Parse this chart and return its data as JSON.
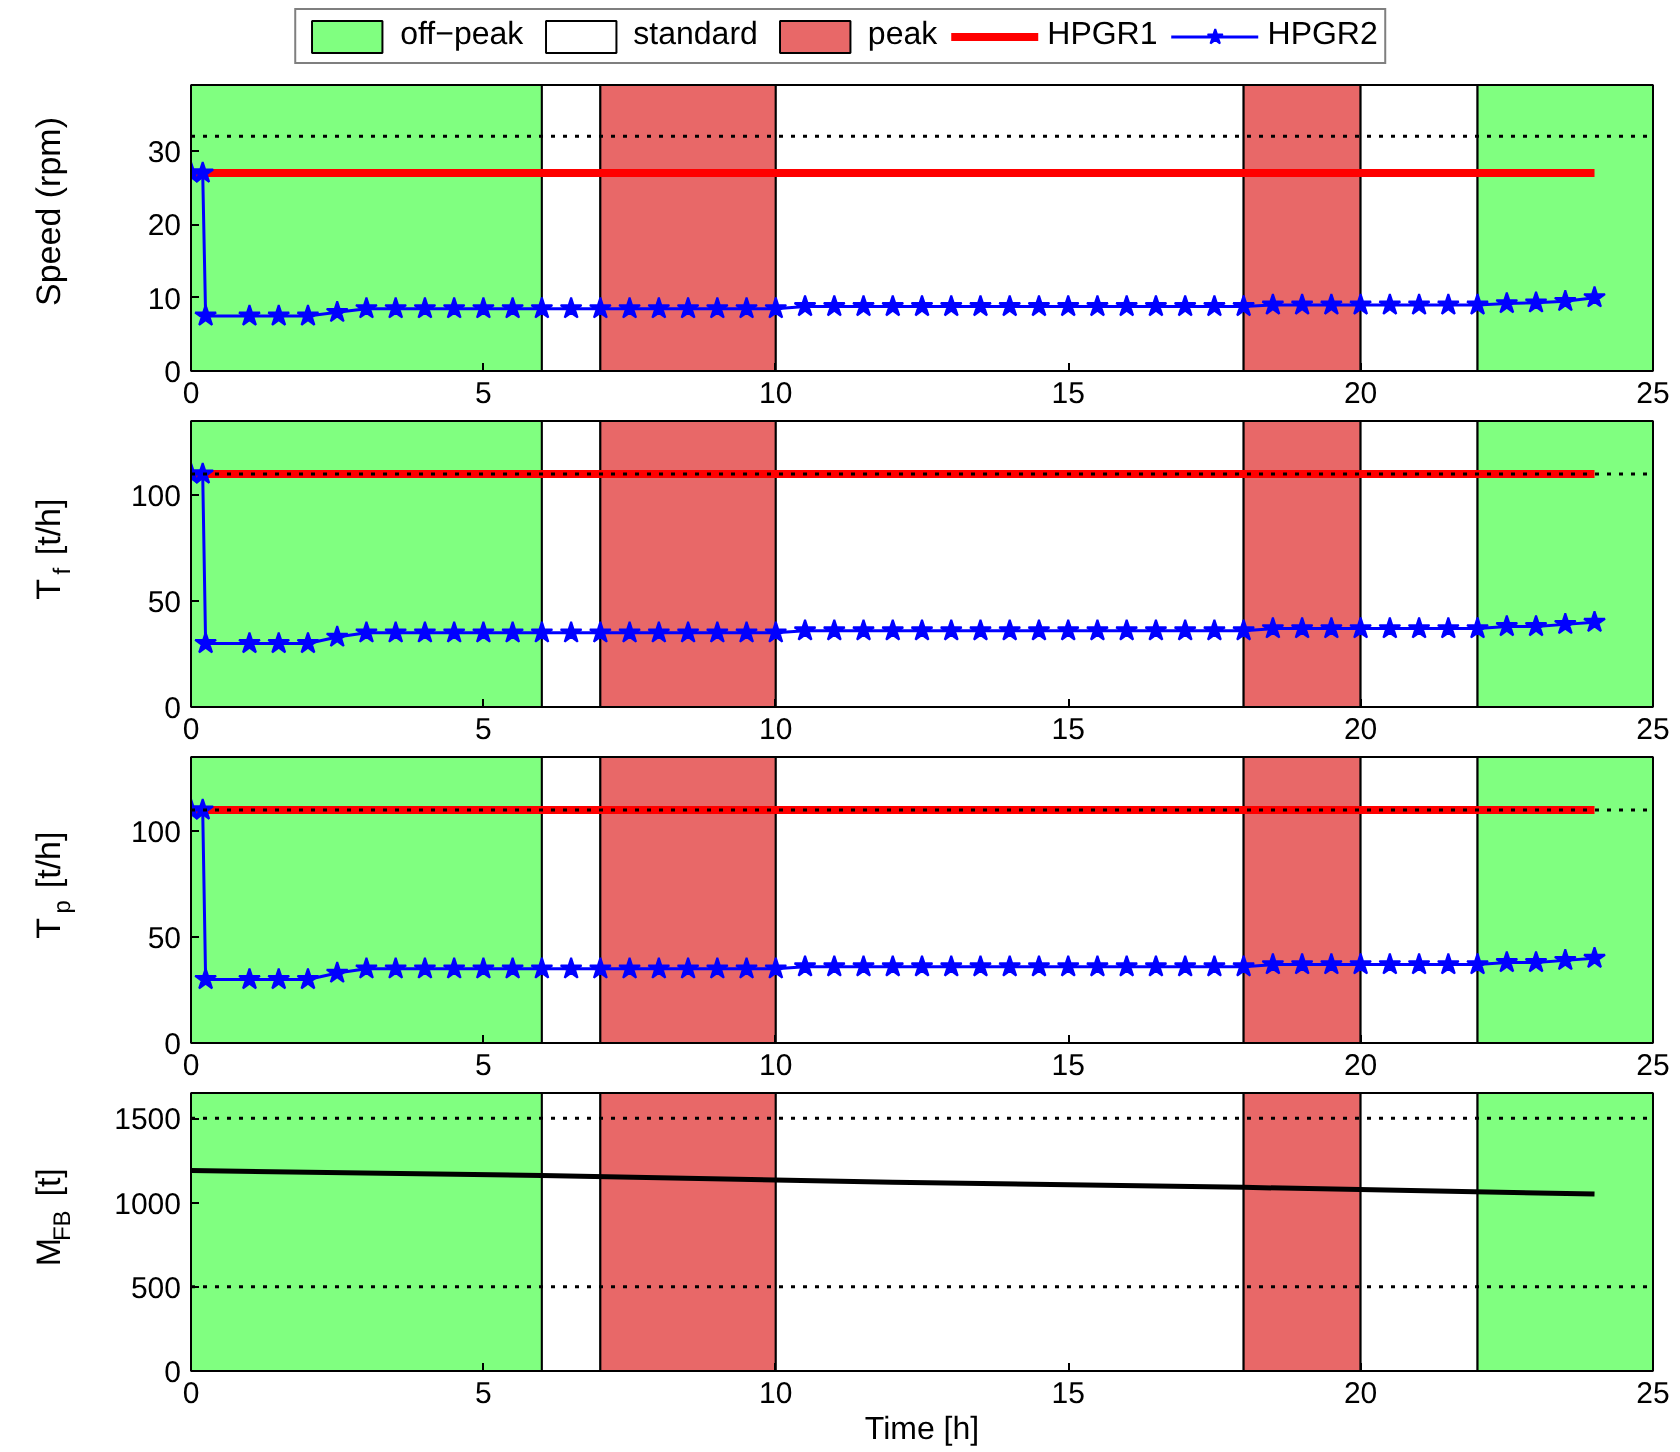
{
  "chart_data": [
    {
      "type": "line",
      "ylabel": "Speed (rpm)",
      "xlim": [
        0,
        25
      ],
      "xticks": [
        0,
        5,
        10,
        15,
        20,
        25
      ],
      "ylim": [
        0,
        39
      ],
      "yticks": [
        0,
        10,
        20,
        30
      ],
      "legend": "top",
      "bands": [
        {
          "axis": "x",
          "from": 0,
          "to": 6,
          "label": "off−peak",
          "color": "#80ff80"
        },
        {
          "axis": "x",
          "from": 6,
          "to": 7,
          "label": "standard",
          "color": "#ffffff"
        },
        {
          "axis": "x",
          "from": 7,
          "to": 10,
          "label": "peak",
          "color": "#e86868"
        },
        {
          "axis": "x",
          "from": 10,
          "to": 18,
          "color": "#ffffff"
        },
        {
          "axis": "x",
          "from": 18,
          "to": 20,
          "color": "#e86868"
        },
        {
          "axis": "x",
          "from": 20,
          "to": 22,
          "color": "#ffffff"
        },
        {
          "axis": "x",
          "from": 22,
          "to": 25,
          "color": "#80ff80"
        }
      ],
      "ref_lines": [
        {
          "axis": "y",
          "value": 32,
          "line_style": "dotted"
        }
      ],
      "series": [
        {
          "name": "HPGR1",
          "color": "#ff0000",
          "marker": "none",
          "x": [
            0,
            24
          ],
          "values": [
            27,
            27
          ]
        },
        {
          "name": "HPGR2",
          "color": "#0000ff",
          "marker": "star",
          "x": [
            0,
            0.2,
            0.25,
            1,
            1.5,
            2,
            2.5,
            3,
            3.5,
            4,
            4.5,
            5,
            5.5,
            6,
            6.5,
            7,
            7.5,
            8,
            8.5,
            9,
            9.5,
            10,
            10.5,
            11,
            11.5,
            12,
            12.5,
            13,
            13.5,
            14,
            14.5,
            15,
            15.5,
            16,
            16.5,
            17,
            17.5,
            18,
            18.5,
            19,
            19.5,
            20,
            20.5,
            21,
            21.5,
            22,
            22.5,
            23,
            23.5,
            24
          ],
          "values": [
            27,
            27,
            7.5,
            7.5,
            7.5,
            7.5,
            8.0,
            8.5,
            8.5,
            8.5,
            8.5,
            8.5,
            8.5,
            8.5,
            8.5,
            8.5,
            8.5,
            8.5,
            8.5,
            8.5,
            8.5,
            8.5,
            8.8,
            8.8,
            8.8,
            8.8,
            8.8,
            8.8,
            8.8,
            8.8,
            8.8,
            8.8,
            8.8,
            8.8,
            8.8,
            8.8,
            8.8,
            8.8,
            9.0,
            9.0,
            9.0,
            9.0,
            9.0,
            9.0,
            9.0,
            9.0,
            9.2,
            9.3,
            9.5,
            10
          ]
        }
      ]
    },
    {
      "type": "line",
      "ylabel": "T$_{f}$ [t/h]",
      "xlim": [
        0,
        25
      ],
      "xticks": [
        0,
        5,
        10,
        15,
        20,
        25
      ],
      "ylim": [
        0,
        135
      ],
      "yticks": [
        0,
        50,
        100
      ],
      "bands": [
        {
          "axis": "x",
          "from": 0,
          "to": 6,
          "color": "#80ff80"
        },
        {
          "axis": "x",
          "from": 6,
          "to": 7,
          "color": "#ffffff"
        },
        {
          "axis": "x",
          "from": 7,
          "to": 10,
          "color": "#e86868"
        },
        {
          "axis": "x",
          "from": 10,
          "to": 18,
          "color": "#ffffff"
        },
        {
          "axis": "x",
          "from": 18,
          "to": 20,
          "color": "#e86868"
        },
        {
          "axis": "x",
          "from": 20,
          "to": 22,
          "color": "#ffffff"
        },
        {
          "axis": "x",
          "from": 22,
          "to": 25,
          "color": "#80ff80"
        }
      ],
      "ref_lines": [
        {
          "axis": "y",
          "value": 110,
          "line_style": "dotted"
        }
      ],
      "series": [
        {
          "color": "#ff0000",
          "marker": "none",
          "x": [
            0,
            24
          ],
          "values": [
            110,
            110
          ]
        },
        {
          "color": "#0000ff",
          "marker": "star",
          "x": [
            0,
            0.2,
            0.25,
            1,
            1.5,
            2,
            2.5,
            3,
            3.5,
            4,
            4.5,
            5,
            5.5,
            6,
            6.5,
            7,
            7.5,
            8,
            8.5,
            9,
            9.5,
            10,
            10.5,
            11,
            11.5,
            12,
            12.5,
            13,
            13.5,
            14,
            14.5,
            15,
            15.5,
            16,
            16.5,
            17,
            17.5,
            18,
            18.5,
            19,
            19.5,
            20,
            20.5,
            21,
            21.5,
            22,
            22.5,
            23,
            23.5,
            24
          ],
          "values": [
            110,
            110,
            30,
            30,
            30,
            30,
            33,
            35,
            35,
            35,
            35,
            35,
            35,
            35,
            35,
            35,
            35,
            35,
            35,
            35,
            35,
            35,
            36,
            36,
            36,
            36,
            36,
            36,
            36,
            36,
            36,
            36,
            36,
            36,
            36,
            36,
            36,
            36,
            37,
            37,
            37,
            37,
            37,
            37,
            37,
            37,
            38,
            38,
            39,
            40
          ]
        }
      ]
    },
    {
      "type": "line",
      "ylabel": "T$_{p}$ [t/h]",
      "xlim": [
        0,
        25
      ],
      "xticks": [
        0,
        5,
        10,
        15,
        20,
        25
      ],
      "ylim": [
        0,
        135
      ],
      "yticks": [
        0,
        50,
        100
      ],
      "bands": [
        {
          "axis": "x",
          "from": 0,
          "to": 6,
          "color": "#80ff80"
        },
        {
          "axis": "x",
          "from": 6,
          "to": 7,
          "color": "#ffffff"
        },
        {
          "axis": "x",
          "from": 7,
          "to": 10,
          "color": "#e86868"
        },
        {
          "axis": "x",
          "from": 10,
          "to": 18,
          "color": "#ffffff"
        },
        {
          "axis": "x",
          "from": 18,
          "to": 20,
          "color": "#e86868"
        },
        {
          "axis": "x",
          "from": 20,
          "to": 22,
          "color": "#ffffff"
        },
        {
          "axis": "x",
          "from": 22,
          "to": 25,
          "color": "#80ff80"
        }
      ],
      "ref_lines": [
        {
          "axis": "y",
          "value": 110,
          "line_style": "dotted"
        }
      ],
      "series": [
        {
          "color": "#ff0000",
          "marker": "none",
          "x": [
            0,
            24
          ],
          "values": [
            110,
            110
          ]
        },
        {
          "color": "#0000ff",
          "marker": "star",
          "x": [
            0,
            0.2,
            0.25,
            1,
            1.5,
            2,
            2.5,
            3,
            3.5,
            4,
            4.5,
            5,
            5.5,
            6,
            6.5,
            7,
            7.5,
            8,
            8.5,
            9,
            9.5,
            10,
            10.5,
            11,
            11.5,
            12,
            12.5,
            13,
            13.5,
            14,
            14.5,
            15,
            15.5,
            16,
            16.5,
            17,
            17.5,
            18,
            18.5,
            19,
            19.5,
            20,
            20.5,
            21,
            21.5,
            22,
            22.5,
            23,
            23.5,
            24
          ],
          "values": [
            110,
            110,
            30,
            30,
            30,
            30,
            33,
            35,
            35,
            35,
            35,
            35,
            35,
            35,
            35,
            35,
            35,
            35,
            35,
            35,
            35,
            35,
            36,
            36,
            36,
            36,
            36,
            36,
            36,
            36,
            36,
            36,
            36,
            36,
            36,
            36,
            36,
            36,
            37,
            37,
            37,
            37,
            37,
            37,
            37,
            37,
            38,
            38,
            39,
            40
          ]
        }
      ]
    },
    {
      "type": "line",
      "ylabel": "M$_{FB}$ [t]",
      "xlabel": "Time [h]",
      "xlim": [
        0,
        25
      ],
      "xticks": [
        0,
        5,
        10,
        15,
        20,
        25
      ],
      "ylim": [
        0,
        1650
      ],
      "yticks": [
        0,
        500,
        1000,
        1500
      ],
      "bands": [
        {
          "axis": "x",
          "from": 0,
          "to": 6,
          "color": "#80ff80"
        },
        {
          "axis": "x",
          "from": 6,
          "to": 7,
          "color": "#ffffff"
        },
        {
          "axis": "x",
          "from": 7,
          "to": 10,
          "color": "#e86868"
        },
        {
          "axis": "x",
          "from": 10,
          "to": 18,
          "color": "#ffffff"
        },
        {
          "axis": "x",
          "from": 18,
          "to": 20,
          "color": "#e86868"
        },
        {
          "axis": "x",
          "from": 20,
          "to": 22,
          "color": "#ffffff"
        },
        {
          "axis": "x",
          "from": 22,
          "to": 25,
          "color": "#80ff80"
        }
      ],
      "ref_lines": [
        {
          "axis": "y",
          "value": 500,
          "line_style": "dotted"
        },
        {
          "axis": "y",
          "value": 1500,
          "line_style": "dotted"
        }
      ],
      "series": [
        {
          "color": "#000000",
          "marker": "none",
          "x": [
            0,
            6,
            12,
            18,
            24
          ],
          "values": [
            1190,
            1160,
            1120,
            1090,
            1050
          ]
        }
      ]
    }
  ]
}
